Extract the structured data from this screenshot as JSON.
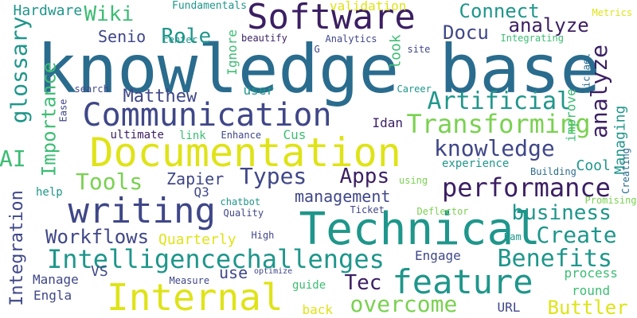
{
  "palette": {
    "purple": "#3b1f63",
    "indigo": "#3f4788",
    "blue": "#2a6c8e",
    "teal": "#1f968b",
    "green": "#3dbc74",
    "lime": "#7ad151",
    "yellow": "#dfe318"
  },
  "words": [
    {
      "id": "knowledge-base",
      "text": "knowledge base",
      "color": "blue"
    },
    {
      "id": "technical",
      "text": "Technical",
      "color": "teal"
    },
    {
      "id": "documentation",
      "text": "Documentation",
      "color": "yellow"
    },
    {
      "id": "software",
      "text": "Software",
      "color": "purple"
    },
    {
      "id": "internal",
      "text": "Internal",
      "color": "yellow"
    },
    {
      "id": "communication",
      "text": "Communication",
      "color": "indigo"
    },
    {
      "id": "writing",
      "text": "writing",
      "color": "indigo"
    },
    {
      "id": "feature",
      "text": "feature",
      "color": "teal"
    },
    {
      "id": "intelligencechallenges",
      "text": "Intelligencechallenges",
      "color": "teal"
    },
    {
      "id": "transforming",
      "text": "Transforming",
      "color": "lime"
    },
    {
      "id": "artificial",
      "text": "Artificial",
      "color": "teal"
    },
    {
      "id": "benefits",
      "text": "Benefits",
      "color": "teal"
    },
    {
      "id": "performance",
      "text": "performance",
      "color": "purple"
    },
    {
      "id": "knowledge",
      "text": "knowledge",
      "color": "indigo"
    },
    {
      "id": "analyze-right",
      "text": "analyze",
      "color": "purple"
    },
    {
      "id": "overcome",
      "text": "overcome",
      "color": "lime"
    },
    {
      "id": "create",
      "text": "Create",
      "color": "teal"
    },
    {
      "id": "business",
      "text": "business",
      "color": "teal"
    },
    {
      "id": "types",
      "text": "Types",
      "color": "indigo"
    },
    {
      "id": "tools",
      "text": "Tools",
      "color": "lime"
    },
    {
      "id": "apps",
      "text": "Apps",
      "color": "purple"
    },
    {
      "id": "tec",
      "text": "Tec",
      "color": "purple"
    },
    {
      "id": "workflows",
      "text": "Workflows",
      "color": "indigo"
    },
    {
      "id": "integration",
      "text": "Integration",
      "color": "indigo"
    },
    {
      "id": "glossary",
      "text": "glossary",
      "color": "teal"
    },
    {
      "id": "importance",
      "text": "Importance",
      "color": "green"
    },
    {
      "id": "role",
      "text": "Role",
      "color": "teal"
    },
    {
      "id": "wiki",
      "text": "Wiki",
      "color": "green"
    },
    {
      "id": "connect",
      "text": "Connect",
      "color": "teal"
    },
    {
      "id": "analyze-top",
      "text": "analyze",
      "color": "purple"
    },
    {
      "id": "docu",
      "text": "Docu",
      "color": "indigo"
    },
    {
      "id": "ai",
      "text": "AI",
      "color": "green"
    },
    {
      "id": "buttler",
      "text": "Buttler",
      "color": "yellow"
    },
    {
      "id": "matthew",
      "text": "Matthew",
      "color": "indigo"
    },
    {
      "id": "managing",
      "text": "Managing",
      "color": "teal"
    },
    {
      "id": "management",
      "text": "management",
      "color": "indigo"
    },
    {
      "id": "zapier",
      "text": "Zapier",
      "color": "indigo"
    },
    {
      "id": "senio",
      "text": "Senio",
      "color": "indigo"
    },
    {
      "id": "hardware",
      "text": "Hardware",
      "color": "teal"
    },
    {
      "id": "engage",
      "text": "Engage",
      "color": "indigo"
    },
    {
      "id": "process",
      "text": "process",
      "color": "green"
    },
    {
      "id": "round",
      "text": "round",
      "color": "green"
    },
    {
      "id": "quarterly",
      "text": "Quarterly",
      "color": "yellow"
    },
    {
      "id": "use",
      "text": "use",
      "color": "indigo"
    },
    {
      "id": "manage",
      "text": "Manage",
      "color": "indigo"
    },
    {
      "id": "engla",
      "text": "Engla",
      "color": "indigo"
    },
    {
      "id": "vs",
      "text": "VS",
      "color": "indigo"
    },
    {
      "id": "back",
      "text": "back",
      "color": "yellow"
    },
    {
      "id": "guide",
      "text": "guide",
      "color": "green"
    },
    {
      "id": "url",
      "text": "URL",
      "color": "indigo"
    },
    {
      "id": "validation",
      "text": "validation",
      "color": "yellow"
    },
    {
      "id": "fundamentals",
      "text": "Fundamentals",
      "color": "teal"
    },
    {
      "id": "look",
      "text": "look",
      "color": "green"
    },
    {
      "id": "ignore",
      "text": "Ignore",
      "color": "green"
    },
    {
      "id": "user",
      "text": "user",
      "color": "teal"
    },
    {
      "id": "cus",
      "text": "Cus",
      "color": "green"
    },
    {
      "id": "ultimate",
      "text": "ultimate",
      "color": "purple"
    },
    {
      "id": "link",
      "text": "link",
      "color": "green"
    },
    {
      "id": "enhance",
      "text": "Enhance",
      "color": "indigo"
    },
    {
      "id": "improve",
      "text": "improve",
      "color": "green"
    },
    {
      "id": "idan",
      "text": "Idan",
      "color": "purple"
    },
    {
      "id": "experience",
      "text": "experience",
      "color": "teal"
    },
    {
      "id": "cool",
      "text": "Cool",
      "color": "teal"
    },
    {
      "id": "help",
      "text": "help",
      "color": "teal"
    },
    {
      "id": "q3",
      "text": "Q3",
      "color": "indigo"
    },
    {
      "id": "chatbot",
      "text": "chatbot",
      "color": "teal"
    },
    {
      "id": "quality",
      "text": "Quality",
      "color": "indigo"
    },
    {
      "id": "high",
      "text": "High",
      "color": "indigo"
    },
    {
      "id": "ticket",
      "text": "Ticket",
      "color": "indigo"
    },
    {
      "id": "deflector",
      "text": "Deflector",
      "color": "lime"
    },
    {
      "id": "promising",
      "text": "Promising",
      "color": "lime"
    },
    {
      "id": "ram",
      "text": "Ram",
      "color": "teal"
    },
    {
      "id": "building",
      "text": "Building",
      "color": "blue"
    },
    {
      "id": "creating",
      "text": "Creating",
      "color": "blue"
    },
    {
      "id": "using",
      "text": "using",
      "color": "lime"
    },
    {
      "id": "career",
      "text": "Career",
      "color": "teal"
    },
    {
      "id": "michael",
      "text": "Michael",
      "color": "blue"
    },
    {
      "id": "metrics",
      "text": "Metrics",
      "color": "yellow"
    },
    {
      "id": "integrating",
      "text": "Integrating",
      "color": "green"
    },
    {
      "id": "site",
      "text": "site",
      "color": "indigo"
    },
    {
      "id": "g",
      "text": "G",
      "color": "indigo"
    },
    {
      "id": "analytics",
      "text": "Analytics",
      "color": "indigo"
    },
    {
      "id": "center",
      "text": "center",
      "color": "teal"
    },
    {
      "id": "beautify",
      "text": "beautify",
      "color": "purple"
    },
    {
      "id": "search",
      "text": "search",
      "color": "indigo"
    },
    {
      "id": "ease",
      "text": "Ease",
      "color": "indigo"
    },
    {
      "id": "measure",
      "text": "Measure",
      "color": "indigo"
    },
    {
      "id": "optimize",
      "text": "optimize",
      "color": "indigo"
    }
  ]
}
